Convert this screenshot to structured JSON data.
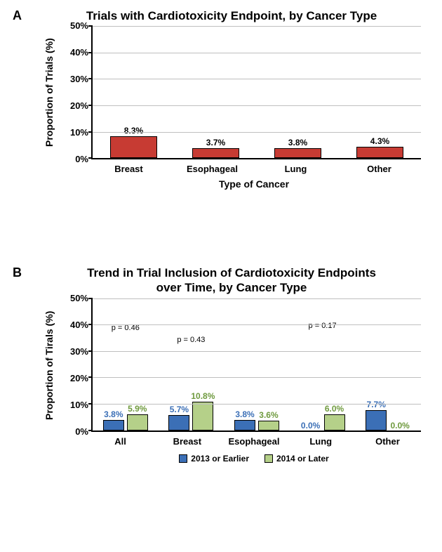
{
  "panelA": {
    "panel_label": "A",
    "title": "Trials with Cardiotoxicity Endpoint, by Cancer Type",
    "y_title": "Proportion of Trials (%)",
    "x_title": "Type of Cancer",
    "y_max": 50,
    "y_tick_step": 10,
    "y_ticks": [
      "50%",
      "40%",
      "30%",
      "20%",
      "10%",
      "0%"
    ],
    "grid_color": "#bfbfbf",
    "bar_fill": "#c73b33",
    "bar_border": "#000000",
    "bar_width_pct": 58,
    "label_color": "#000000",
    "categories": [
      "Breast",
      "Esophageal",
      "Lung",
      "Other"
    ],
    "values": [
      8.3,
      3.7,
      3.8,
      4.3
    ],
    "value_labels": [
      "8.3%",
      "3.7%",
      "3.8%",
      "4.3%"
    ]
  },
  "panelB": {
    "panel_label": "B",
    "title_l1": "Trend in Trial Inclusion of Cardiotoxicity Endpoints",
    "title_l2": "over Time, by Cancer Type",
    "y_title": "Proportion of Tirals (%)",
    "y_max": 50,
    "y_tick_step": 10,
    "y_ticks": [
      "50%",
      "40%",
      "30%",
      "20%",
      "10%",
      "0%"
    ],
    "grid_color": "#bfbfbf",
    "series": [
      {
        "name": "2013 or Earlier",
        "color": "#3b6fb6"
      },
      {
        "name": "2014 or Later",
        "color": "#b5d089"
      }
    ],
    "bar_width_pct": 32,
    "label_colors": [
      "#3b6fb6",
      "#6f9a3e"
    ],
    "categories": [
      "All",
      "Breast",
      "Esophageal",
      "Lung",
      "Other"
    ],
    "values_2013": [
      3.8,
      5.7,
      3.8,
      0.0,
      7.7
    ],
    "values_2014": [
      5.9,
      10.8,
      3.6,
      6.0,
      0.0
    ],
    "labels_2013": [
      "3.8%",
      "5.7%",
      "3.8%",
      "0.0%",
      "7.7%"
    ],
    "labels_2014": [
      "5.9%",
      "10.8%",
      "3.6%",
      "6.0%",
      "0.0%"
    ],
    "p_values": [
      "p = 0.46",
      "p = 0.43",
      "",
      "p = 0.17",
      ""
    ],
    "p_value_ypos_pct": [
      74,
      65,
      100,
      76,
      100
    ]
  }
}
